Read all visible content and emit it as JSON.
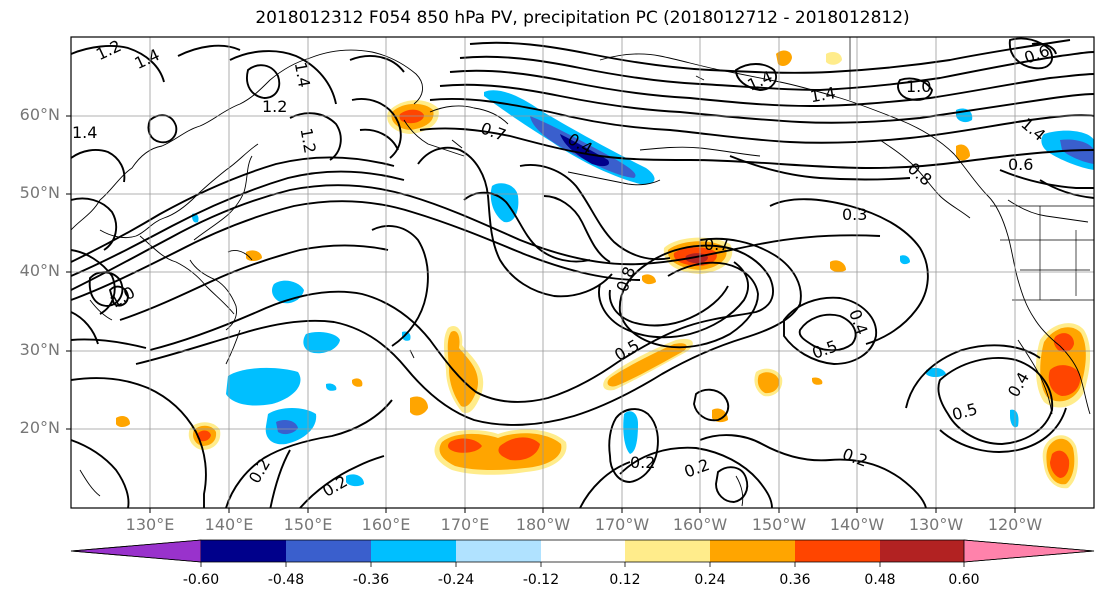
{
  "title": "2018012312 F054 850 hPa PV, precipitation PC (2018012712 - 2018012812)",
  "lat_labels": [
    "60°N",
    "50°N",
    "40°N",
    "30°N",
    "20°N"
  ],
  "lon_labels": [
    "130°E",
    "140°E",
    "150°E",
    "160°E",
    "170°E",
    "180°W",
    "170°W",
    "160°W",
    "150°W",
    "140°W",
    "130°W",
    "120°W"
  ],
  "colorbar": {
    "ticks": [
      "-0.60",
      "-0.48",
      "-0.36",
      "-0.24",
      "-0.12",
      "0.12",
      "0.24",
      "0.36",
      "0.48",
      "0.60"
    ],
    "colors": [
      "#9932CC",
      "#00008B",
      "#3A5FCD",
      "#00BFFF",
      "#B0E2FF",
      "#FFFFFF",
      "#FFEC8B",
      "#FFA500",
      "#FF4500",
      "#B22222",
      "#FF82AB"
    ]
  },
  "contour_labels": [
    "1.2",
    "1.4",
    "1.4",
    "1.2",
    "1.4",
    "1.2",
    "0.7",
    "0.4",
    "1.4",
    "1.4",
    "1.0",
    "1.4",
    "0.6",
    "0.8",
    "0.3",
    "0.7",
    "0.8",
    "0.5",
    "0.5",
    "0.4",
    "0.4",
    "0.5",
    "0.2",
    "0.2",
    "0.2",
    "0.2",
    "0.2",
    "1.0",
    "0.6"
  ]
}
